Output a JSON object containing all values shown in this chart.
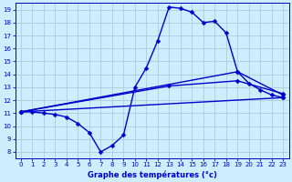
{
  "title": "Graphe des températures (°c)",
  "background_color": "#cceeff",
  "grid_color": "#aaccdd",
  "line_color": "#0000cc",
  "xlim": [
    -0.5,
    23.5
  ],
  "ylim": [
    7.5,
    19.5
  ],
  "yticks": [
    8,
    9,
    10,
    11,
    12,
    13,
    14,
    15,
    16,
    17,
    18,
    19
  ],
  "xticks": [
    0,
    1,
    2,
    3,
    4,
    5,
    6,
    7,
    8,
    9,
    10,
    11,
    12,
    13,
    14,
    15,
    16,
    17,
    18,
    19,
    20,
    21,
    22,
    23
  ],
  "line1_x": [
    0,
    1,
    2,
    3,
    4,
    5,
    6,
    7,
    8,
    9,
    10,
    11,
    12,
    13,
    14,
    15,
    16,
    17,
    18,
    19,
    20,
    21,
    22,
    23
  ],
  "line1_y": [
    11.1,
    11.1,
    11.0,
    10.9,
    10.7,
    10.2,
    9.5,
    8.0,
    8.5,
    9.3,
    13.0,
    14.5,
    16.6,
    19.2,
    19.1,
    18.8,
    18.0,
    18.1,
    17.2,
    14.2,
    13.3,
    12.8,
    12.4,
    12.2
  ],
  "line2_x": [
    0,
    23
  ],
  "line2_y": [
    11.1,
    12.2
  ],
  "line3_x": [
    0,
    19,
    23
  ],
  "line3_y": [
    11.1,
    14.2,
    12.4
  ],
  "line4_x": [
    0,
    13,
    19,
    23
  ],
  "line4_y": [
    11.1,
    13.1,
    13.5,
    12.5
  ],
  "marker_size": 2.5,
  "linewidth": 1.0
}
